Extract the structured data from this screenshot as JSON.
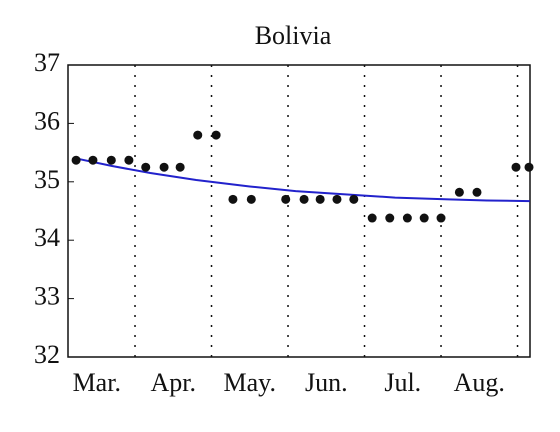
{
  "chart_data": {
    "type": "scatter",
    "title": "Bolivia",
    "x": [
      0.23,
      0.45,
      0.69,
      0.92,
      1.14,
      1.38,
      1.59,
      1.82,
      2.06,
      2.28,
      2.52,
      2.97,
      3.21,
      3.42,
      3.64,
      3.86,
      4.1,
      4.33,
      4.56,
      4.78,
      5.0,
      5.24,
      5.47,
      5.98,
      6.15
    ],
    "values": [
      35.37,
      35.37,
      35.37,
      35.37,
      35.25,
      35.25,
      35.25,
      35.8,
      35.8,
      34.7,
      34.7,
      34.7,
      34.7,
      34.7,
      34.7,
      34.7,
      34.38,
      34.38,
      34.38,
      34.38,
      34.38,
      34.82,
      34.82,
      35.25,
      35.25
    ],
    "color": "#111111",
    "fit": {
      "color": "#2222cc",
      "x": [
        0.23,
        0.7,
        1.2,
        1.8,
        2.5,
        3.1,
        3.8,
        4.4,
        5.1,
        5.6,
        6.16
      ],
      "values": [
        35.4,
        35.27,
        35.15,
        35.03,
        34.92,
        34.84,
        34.78,
        34.73,
        34.7,
        34.68,
        34.67
      ]
    },
    "xlim": [
      0.124,
      6.163
    ],
    "xticks": [
      {
        "value": 0.5,
        "label": "Mar."
      },
      {
        "value": 1.5,
        "label": "Apr."
      },
      {
        "value": 2.5,
        "label": "May."
      },
      {
        "value": 3.5,
        "label": "Jun."
      },
      {
        "value": 4.5,
        "label": "Jul."
      },
      {
        "value": 5.5,
        "label": "Aug."
      }
    ],
    "xgrid": [
      1,
      2,
      3,
      4,
      5,
      6
    ],
    "ylim": [
      32,
      37
    ],
    "yticks": [
      32,
      33,
      34,
      35,
      36,
      37
    ]
  }
}
